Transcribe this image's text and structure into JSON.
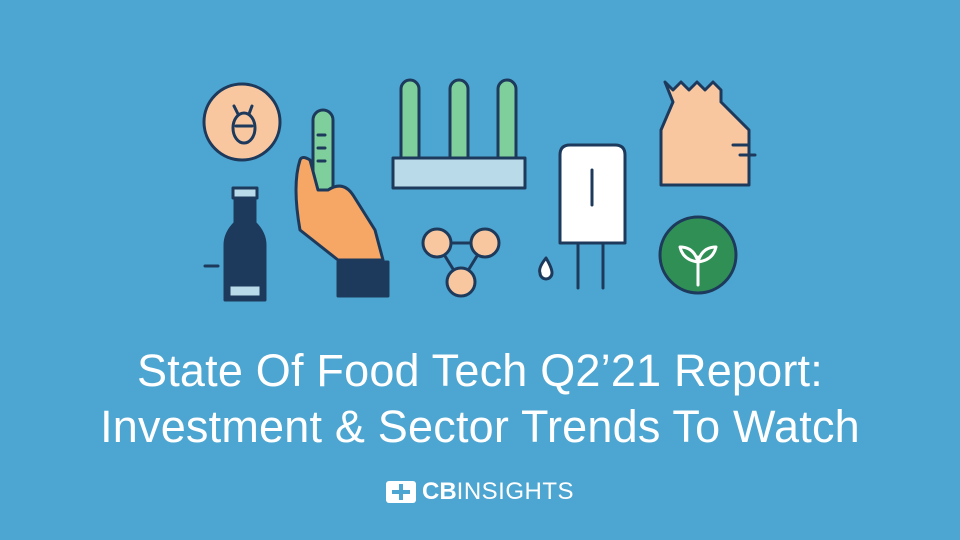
{
  "title": {
    "line1": "State Of Food Tech Q2’21 Report:",
    "line2": "Investment & Sector Trends To Watch"
  },
  "logo": {
    "bold": "CB",
    "light": "INSIGHTS"
  }
}
